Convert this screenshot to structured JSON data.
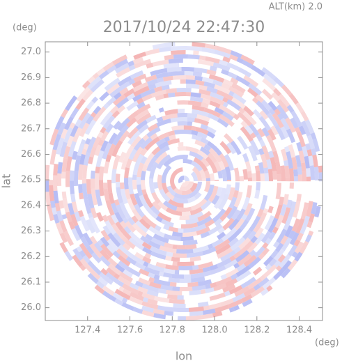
{
  "chart_data": {
    "type": "radar-ppi",
    "title": "2017/10/24 22:47:30",
    "subtitle": "ALT(km) 2.0",
    "x_label": "lon",
    "y_label": "lat",
    "x_unit": "(deg)",
    "y_unit": "(deg)",
    "xlim": [
      127.2,
      128.51
    ],
    "ylim": [
      25.95,
      27.04
    ],
    "xticks": [
      127.4,
      127.6,
      127.8,
      {
        "value": 128.0,
        "label": "128.0"
      },
      128.2,
      128.4
    ],
    "yticks": [
      {
        "value": 26.0,
        "label": "26.0"
      },
      26.1,
      26.2,
      26.3,
      26.4,
      26.5,
      26.6,
      26.7,
      26.8,
      26.9,
      {
        "value": 27.0,
        "label": "27.0"
      }
    ]
  }
}
